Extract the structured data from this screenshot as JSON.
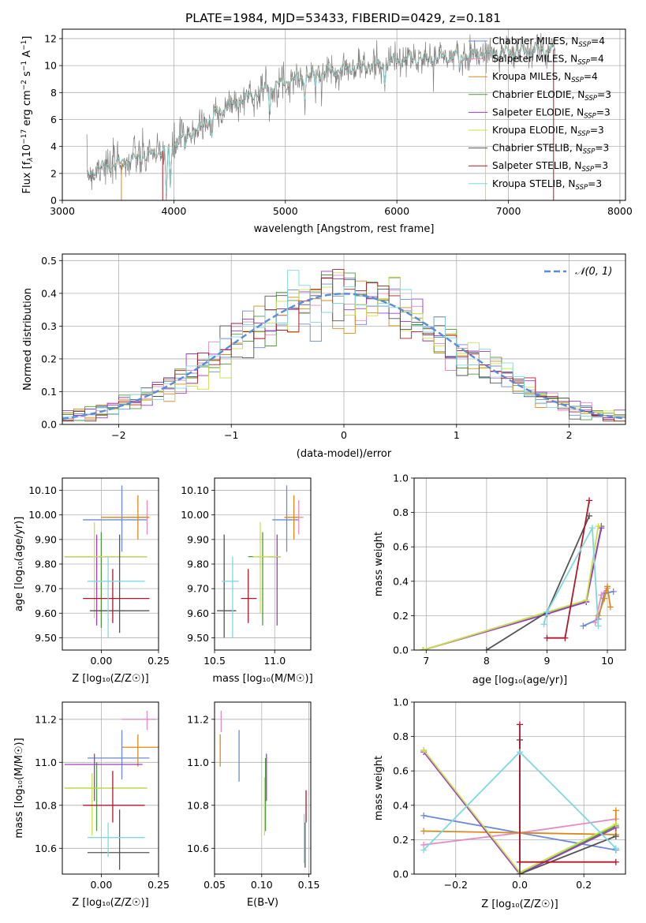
{
  "figure": {
    "title": "PLATE=1984, MJD=53433, FIBERID=0429, z=0.181"
  },
  "models": [
    {
      "name": "Chabrier MILES, N",
      "sub": "SSP",
      "n": "=4",
      "color": "#6c8ad8"
    },
    {
      "name": "Salpeter MILES, N",
      "sub": "SSP",
      "n": "=4",
      "color": "#e38cc3"
    },
    {
      "name": "Kroupa MILES, N",
      "sub": "SSP",
      "n": "=4",
      "color": "#d98a1a"
    },
    {
      "name": "Chabrier ELODIE, N",
      "sub": "SSP",
      "n": "=3",
      "color": "#4f9a3c"
    },
    {
      "name": "Salpeter ELODIE, N",
      "sub": "SSP",
      "n": "=3",
      "color": "#9a3cc6"
    },
    {
      "name": "Kroupa ELODIE, N",
      "sub": "SSP",
      "n": "=3",
      "color": "#c8e04a"
    },
    {
      "name": "Chabrier STELIB, N",
      "sub": "SSP",
      "n": "=3",
      "color": "#555555"
    },
    {
      "name": "Salpeter STELIB, N",
      "sub": "SSP",
      "n": "=3",
      "color": "#b0182a"
    },
    {
      "name": "Kroupa STELIB, N",
      "sub": "SSP",
      "n": "=3",
      "color": "#7fd8e0"
    }
  ],
  "chart_data": [
    {
      "id": "spectrum",
      "type": "line",
      "xlabel": "wavelength [Angstrom, rest frame]",
      "ylabel_parts": [
        "Flux [f",
        "λ",
        "10",
        "−17",
        " erg cm",
        "−2",
        " s",
        "−1",
        " A",
        "−1",
        "]"
      ],
      "xlim": [
        3000,
        8050
      ],
      "ylim": [
        0,
        12.7
      ],
      "xticks": [
        3000,
        4000,
        5000,
        6000,
        7000,
        8000
      ],
      "yticks": [
        0,
        2,
        4,
        6,
        8,
        10,
        12
      ],
      "data_color": "#808080",
      "model_color": "#7fd8e0",
      "continuum": [
        [
          3220,
          1.8
        ],
        [
          3300,
          2.4
        ],
        [
          3450,
          2.6
        ],
        [
          3600,
          3.0
        ],
        [
          3800,
          3.4
        ],
        [
          3950,
          3.8
        ],
        [
          4050,
          4.6
        ],
        [
          4200,
          5.2
        ],
        [
          4400,
          6.6
        ],
        [
          4600,
          7.4
        ],
        [
          4800,
          8.2
        ],
        [
          5000,
          8.8
        ],
        [
          5200,
          9.2
        ],
        [
          5400,
          9.6
        ],
        [
          5600,
          9.8
        ],
        [
          5800,
          10.0
        ],
        [
          6000,
          10.4
        ],
        [
          6200,
          10.5
        ],
        [
          6400,
          10.6
        ],
        [
          6600,
          10.8
        ],
        [
          6800,
          10.9
        ],
        [
          7000,
          11.0
        ],
        [
          7200,
          11.1
        ],
        [
          7420,
          11.2
        ]
      ]
    },
    {
      "id": "residuals",
      "type": "histogram",
      "xlabel": "(data-model)/error",
      "ylabel": "Normed distribution",
      "xlim": [
        -2.5,
        2.5
      ],
      "ylim": [
        0,
        0.52
      ],
      "xticks": [
        -2,
        -1,
        0,
        1,
        2
      ],
      "yticks": [
        0,
        0.1,
        0.2,
        0.3,
        0.4,
        0.5
      ],
      "bin_width": 0.1,
      "legend": "𝒩(0, 1)",
      "gaussian_color": "#5b8bdc"
    },
    {
      "id": "age-vs-Z",
      "type": "errorbar",
      "xlabel": "Z [log₁₀(Z/Z☉)]",
      "ylabel": "age  [log₁₀(age/yr)]",
      "xlim": [
        -0.17,
        0.25
      ],
      "ylim": [
        9.45,
        10.15
      ],
      "xticks": [
        0.0,
        0.25
      ],
      "xticklabels": [
        "0.00",
        "0.25"
      ],
      "yticks": [
        9.5,
        9.6,
        9.7,
        9.8,
        9.9,
        10.0,
        10.1
      ],
      "points": [
        {
          "m": 0,
          "x": 0.09,
          "y": 9.98,
          "xe": [
            -0.08,
            0.2
          ],
          "ye": [
            9.85,
            10.12
          ]
        },
        {
          "m": 1,
          "x": 0.2,
          "y": 9.99,
          "xe": [
            0.09,
            0.21
          ],
          "ye": [
            9.92,
            10.06
          ]
        },
        {
          "m": 2,
          "x": 0.16,
          "y": 9.99,
          "xe": [
            0.0,
            0.21
          ],
          "ye": [
            9.9,
            10.08
          ]
        },
        {
          "m": 3,
          "x": 0.0,
          "y": 9.83,
          "xe": [
            -0.16,
            0.2
          ],
          "ye": [
            9.54,
            9.93
          ]
        },
        {
          "m": 4,
          "x": -0.02,
          "y": 9.83,
          "xe": [
            -0.16,
            0.2
          ],
          "ye": [
            9.55,
            9.92
          ]
        },
        {
          "m": 5,
          "x": -0.03,
          "y": 9.83,
          "xe": [
            -0.16,
            0.2
          ],
          "ye": [
            9.58,
            9.97
          ]
        },
        {
          "m": 6,
          "x": 0.08,
          "y": 9.61,
          "xe": [
            -0.05,
            0.21
          ],
          "ye": [
            9.52,
            9.92
          ]
        },
        {
          "m": 7,
          "x": 0.05,
          "y": 9.66,
          "xe": [
            -0.08,
            0.21
          ],
          "ye": [
            9.56,
            9.78
          ]
        },
        {
          "m": 8,
          "x": 0.03,
          "y": 9.73,
          "xe": [
            -0.06,
            0.19
          ],
          "ye": [
            9.5,
            9.83
          ]
        }
      ]
    },
    {
      "id": "age-vs-mass",
      "type": "errorbar",
      "xlabel": "mass [log₁₀(M/M☉)]",
      "ylabel": "",
      "xlim": [
        10.5,
        11.3
      ],
      "ylim": [
        9.45,
        10.15
      ],
      "xticks": [
        10.5,
        11.0
      ],
      "xticklabels": [
        "10.5",
        "11.0"
      ],
      "yticks": [
        9.5,
        9.6,
        9.7,
        9.8,
        9.9,
        10.0,
        10.1
      ],
      "points": [
        {
          "m": 0,
          "x": 11.1,
          "y": 9.98,
          "xe": [
            10.98,
            11.2
          ],
          "ye": [
            9.85,
            10.12
          ]
        },
        {
          "m": 1,
          "x": 11.2,
          "y": 9.99,
          "xe": [
            11.15,
            11.24
          ],
          "ye": [
            9.92,
            10.06
          ]
        },
        {
          "m": 2,
          "x": 11.16,
          "y": 9.99,
          "xe": [
            11.08,
            11.2
          ],
          "ye": [
            9.9,
            10.08
          ]
        },
        {
          "m": 3,
          "x": 10.9,
          "y": 9.83,
          "xe": [
            10.78,
            11.05
          ],
          "ye": [
            9.55,
            9.93
          ]
        },
        {
          "m": 4,
          "x": 11.02,
          "y": 9.83,
          "xe": [
            10.95,
            11.05
          ],
          "ye": [
            9.55,
            9.92
          ]
        },
        {
          "m": 5,
          "x": 10.88,
          "y": 9.83,
          "xe": [
            10.82,
            11.05
          ],
          "ye": [
            9.6,
            9.97
          ]
        },
        {
          "m": 6,
          "x": 10.58,
          "y": 9.61,
          "xe": [
            10.52,
            10.68
          ],
          "ye": [
            9.5,
            9.92
          ]
        },
        {
          "m": 7,
          "x": 10.78,
          "y": 9.66,
          "xe": [
            10.72,
            10.85
          ],
          "ye": [
            9.56,
            9.78
          ]
        },
        {
          "m": 8,
          "x": 10.65,
          "y": 9.73,
          "xe": [
            10.56,
            10.7
          ],
          "ye": [
            9.5,
            9.83
          ]
        }
      ]
    },
    {
      "id": "weight-vs-age",
      "type": "line",
      "xlabel": "age  [log₁₀(age/yr)]",
      "ylabel": "mass weight",
      "xlim": [
        6.8,
        10.3
      ],
      "ylim": [
        0,
        1
      ],
      "xticks": [
        7,
        8,
        9,
        10
      ],
      "yticks": [
        0.0,
        0.2,
        0.4,
        0.6,
        0.8,
        1.0
      ],
      "series": [
        {
          "m": 0,
          "points": [
            [
              9.6,
              0.14
            ],
            [
              9.85,
              0.18
            ],
            [
              9.95,
              0.33
            ],
            [
              10.1,
              0.34
            ]
          ]
        },
        {
          "m": 1,
          "points": [
            [
              9.8,
              0.16
            ],
            [
              9.9,
              0.32
            ],
            [
              10.0,
              0.36
            ]
          ]
        },
        {
          "m": 2,
          "points": [
            [
              9.85,
              0.2
            ],
            [
              9.95,
              0.3
            ],
            [
              10.0,
              0.37
            ],
            [
              10.05,
              0.25
            ]
          ]
        },
        {
          "m": 3,
          "points": [
            [
              6.95,
              0.0
            ],
            [
              9.0,
              0.22
            ],
            [
              9.65,
              0.28
            ],
            [
              9.9,
              0.72
            ]
          ]
        },
        {
          "m": 4,
          "points": [
            [
              6.95,
              0.0
            ],
            [
              9.0,
              0.21
            ],
            [
              9.65,
              0.28
            ],
            [
              9.9,
              0.71
            ]
          ]
        },
        {
          "m": 5,
          "points": [
            [
              6.95,
              0.0
            ],
            [
              9.0,
              0.22
            ],
            [
              9.65,
              0.29
            ],
            [
              9.85,
              0.72
            ]
          ]
        },
        {
          "m": 6,
          "points": [
            [
              8.0,
              0.0
            ],
            [
              9.0,
              0.22
            ],
            [
              9.7,
              0.78
            ]
          ]
        },
        {
          "m": 7,
          "points": [
            [
              9.0,
              0.07
            ],
            [
              9.3,
              0.07
            ],
            [
              9.7,
              0.87
            ]
          ]
        },
        {
          "m": 8,
          "points": [
            [
              8.95,
              0.15
            ],
            [
              9.0,
              0.22
            ],
            [
              9.75,
              0.71
            ],
            [
              9.85,
              0.14
            ]
          ]
        }
      ]
    },
    {
      "id": "mass-vs-Z",
      "type": "errorbar",
      "xlabel": "Z [log₁₀(Z/Z☉)]",
      "ylabel": "mass [log₁₀(M/M☉)]",
      "xlim": [
        -0.17,
        0.25
      ],
      "ylim": [
        10.48,
        11.28
      ],
      "xticks": [
        0.0,
        0.25
      ],
      "xticklabels": [
        "0.00",
        "0.25"
      ],
      "yticks": [
        10.6,
        10.8,
        11.0,
        11.2
      ],
      "points": [
        {
          "m": 0,
          "x": 0.09,
          "y": 11.02,
          "xe": [
            -0.06,
            0.21
          ],
          "ye": [
            10.92,
            11.15
          ]
        },
        {
          "m": 1,
          "x": 0.2,
          "y": 11.2,
          "xe": [
            0.09,
            0.24
          ],
          "ye": [
            11.15,
            11.24
          ]
        },
        {
          "m": 2,
          "x": 0.16,
          "y": 11.07,
          "xe": [
            0.09,
            0.25
          ],
          "ye": [
            10.98,
            11.13
          ]
        },
        {
          "m": 3,
          "x": -0.02,
          "y": 10.88,
          "xe": [
            -0.16,
            0.2
          ],
          "ye": [
            10.68,
            11.0
          ]
        },
        {
          "m": 4,
          "x": -0.03,
          "y": 10.99,
          "xe": [
            -0.16,
            0.18
          ],
          "ye": [
            10.82,
            11.04
          ]
        },
        {
          "m": 5,
          "x": -0.04,
          "y": 10.88,
          "xe": [
            -0.16,
            0.2
          ],
          "ye": [
            10.66,
            10.95
          ]
        },
        {
          "m": 6,
          "x": 0.08,
          "y": 10.58,
          "xe": [
            -0.06,
            0.21
          ],
          "ye": [
            10.5,
            10.78
          ]
        },
        {
          "m": 7,
          "x": 0.05,
          "y": 10.8,
          "xe": [
            -0.08,
            0.19
          ],
          "ye": [
            10.72,
            10.96
          ]
        },
        {
          "m": 8,
          "x": 0.03,
          "y": 10.65,
          "xe": [
            -0.06,
            0.19
          ],
          "ye": [
            10.56,
            10.72
          ]
        }
      ]
    },
    {
      "id": "mass-vs-EBV",
      "type": "errorbar",
      "xlabel": "E(B-V)",
      "ylabel": "",
      "xlim": [
        0.05,
        0.152
      ],
      "ylim": [
        10.48,
        11.28
      ],
      "xticks": [
        0.05,
        0.1,
        0.15
      ],
      "xticklabels": [
        "0.05",
        "0.10",
        "0.15"
      ],
      "yticks": [
        10.6,
        10.8,
        11.0,
        11.2
      ],
      "points": [
        {
          "m": 0,
          "x": 0.076,
          "y": 11.02,
          "xe": [
            0.076,
            0.076
          ],
          "ye": [
            10.91,
            11.15
          ]
        },
        {
          "m": 1,
          "x": 0.057,
          "y": 11.2,
          "xe": [
            0.057,
            0.057
          ],
          "ye": [
            11.14,
            11.24
          ]
        },
        {
          "m": 2,
          "x": 0.056,
          "y": 11.07,
          "xe": [
            0.056,
            0.056
          ],
          "ye": [
            10.98,
            11.13
          ]
        },
        {
          "m": 3,
          "x": 0.104,
          "y": 10.88,
          "xe": [
            0.104,
            0.104
          ],
          "ye": [
            10.68,
            11.02
          ]
        },
        {
          "m": 4,
          "x": 0.105,
          "y": 10.99,
          "xe": [
            0.105,
            0.105
          ],
          "ye": [
            10.82,
            11.04
          ]
        },
        {
          "m": 5,
          "x": 0.103,
          "y": 10.88,
          "xe": [
            0.103,
            0.103
          ],
          "ye": [
            10.66,
            10.93
          ]
        },
        {
          "m": 6,
          "x": 0.146,
          "y": 10.6,
          "xe": [
            0.146,
            0.146
          ],
          "ye": [
            10.51,
            10.72
          ]
        },
        {
          "m": 7,
          "x": 0.147,
          "y": 10.8,
          "xe": [
            0.147,
            0.147
          ],
          "ye": [
            10.72,
            10.87
          ]
        },
        {
          "m": 8,
          "x": 0.145,
          "y": 10.65,
          "xe": [
            0.145,
            0.145
          ],
          "ye": [
            10.53,
            10.76
          ]
        }
      ]
    },
    {
      "id": "weight-vs-Z",
      "type": "line",
      "xlabel": "Z [log₁₀(Z/Z☉)]",
      "ylabel": "mass weight",
      "xlim": [
        -0.33,
        0.33
      ],
      "ylim": [
        0,
        1
      ],
      "xticks": [
        -0.2,
        0.0,
        0.2
      ],
      "xticklabels": [
        "−0.2",
        "0.0",
        "0.2"
      ],
      "yticks": [
        0.0,
        0.2,
        0.4,
        0.6,
        0.8,
        1.0
      ],
      "series": [
        {
          "m": 0,
          "points": [
            [
              -0.3,
              0.34
            ],
            [
              0.0,
              0.24
            ],
            [
              0.3,
              0.14
            ]
          ]
        },
        {
          "m": 1,
          "points": [
            [
              -0.3,
              0.17
            ],
            [
              0.0,
              0.24
            ],
            [
              0.3,
              0.32
            ]
          ]
        },
        {
          "m": 2,
          "points": [
            [
              -0.3,
              0.25
            ],
            [
              0.0,
              0.24
            ],
            [
              0.3,
              0.23
            ],
            [
              0.3,
              0.37
            ]
          ]
        },
        {
          "m": 3,
          "points": [
            [
              -0.3,
              0.72
            ],
            [
              0.0,
              0.0
            ],
            [
              0.3,
              0.28
            ]
          ]
        },
        {
          "m": 4,
          "points": [
            [
              -0.3,
              0.71
            ],
            [
              0.0,
              0.0
            ],
            [
              0.3,
              0.27
            ]
          ]
        },
        {
          "m": 5,
          "points": [
            [
              -0.3,
              0.72
            ],
            [
              0.0,
              0.01
            ],
            [
              0.3,
              0.29
            ]
          ]
        },
        {
          "m": 6,
          "points": [
            [
              0.0,
              0.78
            ],
            [
              0.0,
              0.0
            ],
            [
              0.3,
              0.22
            ]
          ]
        },
        {
          "m": 7,
          "points": [
            [
              0.0,
              0.87
            ],
            [
              0.0,
              0.07
            ],
            [
              0.3,
              0.07
            ]
          ]
        },
        {
          "m": 8,
          "points": [
            [
              -0.3,
              0.14
            ],
            [
              0.0,
              0.71
            ],
            [
              0.3,
              0.15
            ]
          ]
        }
      ]
    }
  ]
}
